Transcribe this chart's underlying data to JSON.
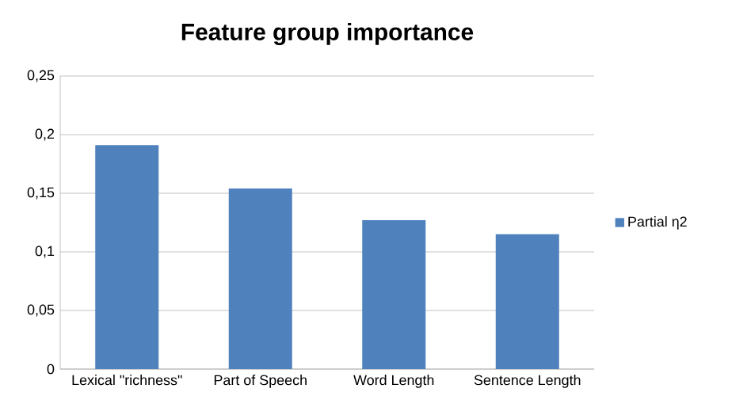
{
  "chart_data": {
    "type": "bar",
    "title": "Feature group importance",
    "categories": [
      "Lexical \"richness\"",
      "Part of Speech",
      "Word Length",
      "Sentence Length"
    ],
    "series": [
      {
        "name": "Partial η2",
        "color": "#4f81bd",
        "values": [
          0.191,
          0.154,
          0.127,
          0.115
        ]
      }
    ],
    "ylim": [
      0,
      0.25
    ],
    "yticks": [
      {
        "value": 0,
        "label": "0"
      },
      {
        "value": 0.05,
        "label": "0,05"
      },
      {
        "value": 0.1,
        "label": "0,1"
      },
      {
        "value": 0.15,
        "label": "0,15"
      },
      {
        "value": 0.2,
        "label": "0,2"
      },
      {
        "value": 0.25,
        "label": "0,25"
      }
    ],
    "grid": "y",
    "legend": "right"
  }
}
